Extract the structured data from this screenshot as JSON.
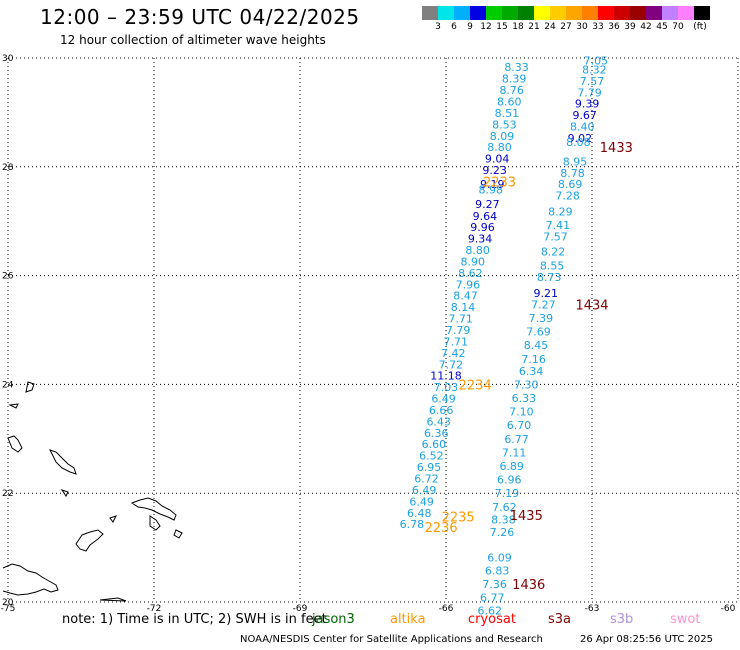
{
  "title": "12:00 – 23:59 UTC 04/22/2025",
  "subtitle": "12 hour collection of altimeter wave heights",
  "colorbar": {
    "colors": [
      "#808080",
      "#00e5e5",
      "#00b0ff",
      "#0000e0",
      "#00cc00",
      "#00aa00",
      "#008000",
      "#ffff00",
      "#ffcc00",
      "#ffa500",
      "#ff7f00",
      "#ff0000",
      "#cc0000",
      "#990000",
      "#800080",
      "#c080ff",
      "#ff80ff",
      "#000000"
    ],
    "labels": [
      "3",
      "6",
      "9",
      "12",
      "15",
      "18",
      "21",
      "24",
      "27",
      "30",
      "33",
      "36",
      "39",
      "42",
      "45",
      "70",
      "(ft)"
    ]
  },
  "axes": {
    "lon_min": -75,
    "lon_max": -60,
    "lat_min": 20,
    "lat_max": 30,
    "lon_ticks": [
      "-75",
      "-72",
      "-69",
      "-66",
      "-63",
      "-60"
    ],
    "lat_ticks": [
      "30",
      "28",
      "26",
      "24",
      "22",
      "20"
    ]
  },
  "colors": {
    "low": "#1ba1e2",
    "mid": "#0000c8",
    "orange": "#ff9900",
    "time_red": "#800000",
    "land": "#000000",
    "grid": "#000000"
  },
  "tracks": [
    {
      "points": [
        {
          "lon": -62.92,
          "lat": 29.95,
          "value": "7.05",
          "c": "low"
        },
        {
          "lon": -62.95,
          "lat": 29.79,
          "value": "8.32",
          "c": "low"
        },
        {
          "lon": -63.0,
          "lat": 29.58,
          "value": "7.57",
          "c": "low"
        },
        {
          "lon": -63.05,
          "lat": 29.37,
          "value": "7.79",
          "c": "low"
        },
        {
          "lon": -63.1,
          "lat": 29.16,
          "value": "9.39",
          "c": "mid"
        },
        {
          "lon": -63.15,
          "lat": 28.95,
          "value": "9.67",
          "c": "mid"
        },
        {
          "lon": -63.2,
          "lat": 28.74,
          "value": "8.40",
          "c": "low"
        },
        {
          "lon": -63.25,
          "lat": 28.53,
          "value": "9.02",
          "c": "mid"
        },
        {
          "lon": -63.28,
          "lat": 28.46,
          "value": "8.08",
          "c": "low"
        },
        {
          "lon": -63.35,
          "lat": 28.1,
          "value": "8.95",
          "c": "low"
        },
        {
          "lon": -63.4,
          "lat": 27.89,
          "value": "8.78",
          "c": "low"
        },
        {
          "lon": -63.45,
          "lat": 27.68,
          "value": "8.69",
          "c": "low"
        },
        {
          "lon": -63.5,
          "lat": 27.47,
          "value": "7.28",
          "c": "low"
        },
        {
          "lon": -63.65,
          "lat": 27.18,
          "value": "8.29",
          "c": "low"
        },
        {
          "lon": -63.7,
          "lat": 26.93,
          "value": "7.41",
          "c": "low"
        },
        {
          "lon": -63.75,
          "lat": 26.72,
          "value": "7.57",
          "c": "low"
        },
        {
          "lon": -63.8,
          "lat": 26.44,
          "value": "8.22",
          "c": "low"
        },
        {
          "lon": -63.82,
          "lat": 26.19,
          "value": "8.55",
          "c": "low"
        },
        {
          "lon": -63.88,
          "lat": 25.97,
          "value": "8.73",
          "c": "low"
        },
        {
          "lon": -63.95,
          "lat": 25.68,
          "value": "9.21",
          "c": "mid"
        },
        {
          "lon": -64.0,
          "lat": 25.47,
          "value": "7.27",
          "c": "low"
        },
        {
          "lon": -64.05,
          "lat": 25.22,
          "value": "7.39",
          "c": "low"
        },
        {
          "lon": -64.1,
          "lat": 24.97,
          "value": "7.69",
          "c": "low"
        },
        {
          "lon": -64.15,
          "lat": 24.72,
          "value": "8.45",
          "c": "low"
        },
        {
          "lon": -64.2,
          "lat": 24.47,
          "value": "7.16",
          "c": "low"
        },
        {
          "lon": -64.25,
          "lat": 24.25,
          "value": "6.34",
          "c": "low"
        },
        {
          "lon": -64.35,
          "lat": 24.0,
          "value": "7.30",
          "c": "low"
        },
        {
          "lon": -64.4,
          "lat": 23.75,
          "value": "6.33",
          "c": "low"
        },
        {
          "lon": -64.45,
          "lat": 23.5,
          "value": "7.10",
          "c": "low"
        },
        {
          "lon": -64.5,
          "lat": 23.25,
          "value": "6.70",
          "c": "low"
        },
        {
          "lon": -64.55,
          "lat": 23.0,
          "value": "6.77",
          "c": "low"
        },
        {
          "lon": -64.6,
          "lat": 22.75,
          "value": "7.11",
          "c": "low"
        },
        {
          "lon": -64.65,
          "lat": 22.5,
          "value": "6.89",
          "c": "low"
        },
        {
          "lon": -64.7,
          "lat": 22.25,
          "value": "6.96",
          "c": "low"
        },
        {
          "lon": -64.75,
          "lat": 22.0,
          "value": "7.19",
          "c": "low"
        },
        {
          "lon": -64.8,
          "lat": 21.75,
          "value": "7.62",
          "c": "low"
        },
        {
          "lon": -64.82,
          "lat": 21.52,
          "value": "8.38",
          "c": "low"
        },
        {
          "lon": -64.85,
          "lat": 21.29,
          "value": "7.26",
          "c": "low"
        },
        {
          "lon": -64.9,
          "lat": 20.82,
          "value": "6.09",
          "c": "low"
        },
        {
          "lon": -64.95,
          "lat": 20.58,
          "value": "6.83",
          "c": "low"
        },
        {
          "lon": -65.0,
          "lat": 20.33,
          "value": "7.36",
          "c": "low"
        },
        {
          "lon": -65.05,
          "lat": 20.08,
          "value": "6.77",
          "c": "low"
        },
        {
          "lon": -65.1,
          "lat": 19.84,
          "value": "6.62",
          "c": "low"
        }
      ]
    },
    {
      "points": [
        {
          "lon": -64.55,
          "lat": 29.83,
          "value": "8.33",
          "c": "low"
        },
        {
          "lon": -64.6,
          "lat": 29.62,
          "value": "8.39",
          "c": "low"
        },
        {
          "lon": -64.65,
          "lat": 29.41,
          "value": "8.76",
          "c": "low"
        },
        {
          "lon": -64.7,
          "lat": 29.2,
          "value": "8.60",
          "c": "low"
        },
        {
          "lon": -64.75,
          "lat": 28.99,
          "value": "8.51",
          "c": "low"
        },
        {
          "lon": -64.8,
          "lat": 28.78,
          "value": "8.53",
          "c": "low"
        },
        {
          "lon": -64.85,
          "lat": 28.57,
          "value": "8.09",
          "c": "low"
        },
        {
          "lon": -64.9,
          "lat": 28.36,
          "value": "8.80",
          "c": "low"
        },
        {
          "lon": -64.95,
          "lat": 28.15,
          "value": "9.04",
          "c": "mid"
        },
        {
          "lon": -65.0,
          "lat": 27.94,
          "value": "9.23",
          "c": "mid"
        },
        {
          "lon": -65.05,
          "lat": 27.68,
          "value": "9.19",
          "c": "mid"
        },
        {
          "lon": -65.08,
          "lat": 27.58,
          "value": "8.98",
          "c": "low"
        },
        {
          "lon": -65.15,
          "lat": 27.32,
          "value": "9.27",
          "c": "mid"
        },
        {
          "lon": -65.2,
          "lat": 27.1,
          "value": "9.64",
          "c": "mid"
        },
        {
          "lon": -65.25,
          "lat": 26.89,
          "value": "9.96",
          "c": "mid"
        },
        {
          "lon": -65.3,
          "lat": 26.68,
          "value": "9.34",
          "c": "mid"
        },
        {
          "lon": -65.35,
          "lat": 26.47,
          "value": "8.80",
          "c": "low"
        },
        {
          "lon": -65.45,
          "lat": 26.26,
          "value": "8.90",
          "c": "low"
        },
        {
          "lon": -65.5,
          "lat": 26.05,
          "value": "8.62",
          "c": "low"
        },
        {
          "lon": -65.55,
          "lat": 25.84,
          "value": "7.96",
          "c": "low"
        },
        {
          "lon": -65.6,
          "lat": 25.63,
          "value": "8.47",
          "c": "low"
        },
        {
          "lon": -65.65,
          "lat": 25.42,
          "value": "8.14",
          "c": "low"
        },
        {
          "lon": -65.7,
          "lat": 25.21,
          "value": "7.71",
          "c": "low"
        },
        {
          "lon": -65.75,
          "lat": 25.0,
          "value": "7.79",
          "c": "low"
        },
        {
          "lon": -65.8,
          "lat": 24.79,
          "value": "7.71",
          "c": "low"
        },
        {
          "lon": -65.85,
          "lat": 24.58,
          "value": "7.42",
          "c": "low"
        },
        {
          "lon": -65.9,
          "lat": 24.37,
          "value": "7.72",
          "c": "low"
        },
        {
          "lon": -66.0,
          "lat": 24.16,
          "value": "11.18",
          "c": "mid"
        },
        {
          "lon": -66.0,
          "lat": 23.95,
          "value": "7.03",
          "c": "low"
        },
        {
          "lon": -66.05,
          "lat": 23.74,
          "value": "6.49",
          "c": "low"
        },
        {
          "lon": -66.1,
          "lat": 23.53,
          "value": "6.66",
          "c": "low"
        },
        {
          "lon": -66.15,
          "lat": 23.32,
          "value": "6.43",
          "c": "low"
        },
        {
          "lon": -66.2,
          "lat": 23.11,
          "value": "6.36",
          "c": "low"
        },
        {
          "lon": -66.25,
          "lat": 22.9,
          "value": "6.60",
          "c": "low"
        },
        {
          "lon": -66.3,
          "lat": 22.69,
          "value": "6.52",
          "c": "low"
        },
        {
          "lon": -66.35,
          "lat": 22.48,
          "value": "6.95",
          "c": "low"
        },
        {
          "lon": -66.4,
          "lat": 22.27,
          "value": "6.72",
          "c": "low"
        },
        {
          "lon": -66.45,
          "lat": 22.06,
          "value": "6.49",
          "c": "low"
        },
        {
          "lon": -66.5,
          "lat": 21.85,
          "value": "6.49",
          "c": "low"
        },
        {
          "lon": -66.55,
          "lat": 21.64,
          "value": "6.48",
          "c": "low"
        },
        {
          "lon": -66.7,
          "lat": 21.43,
          "value": "6.78",
          "c": "low"
        }
      ]
    }
  ],
  "time_labels": [
    {
      "lon": -62.5,
      "lat": 28.36,
      "text": "1433",
      "c": "time_red"
    },
    {
      "lon": -64.9,
      "lat": 27.73,
      "text": "2233",
      "c": "orange"
    },
    {
      "lon": -63.0,
      "lat": 25.47,
      "text": "1434",
      "c": "time_red"
    },
    {
      "lon": -65.4,
      "lat": 24.0,
      "text": "2234",
      "c": "orange"
    },
    {
      "lon": -64.35,
      "lat": 21.6,
      "text": "1435",
      "c": "time_red"
    },
    {
      "lon": -65.75,
      "lat": 21.57,
      "text": "2235",
      "c": "orange"
    },
    {
      "lon": -64.3,
      "lat": 20.33,
      "text": "1436",
      "c": "time_red"
    },
    {
      "lon": -66.1,
      "lat": 21.38,
      "text": "2236",
      "c": "orange"
    }
  ],
  "note": "note:  1) Time is in UTC; 2) SWH is in feet",
  "satellites": [
    {
      "label": "jason3",
      "color": "#006400"
    },
    {
      "label": "altika",
      "color": "#ff9900"
    },
    {
      "label": "cryosat",
      "color": "#ff0000"
    },
    {
      "label": "s3a",
      "color": "#800000"
    },
    {
      "label": "s3b",
      "color": "#b090e0"
    },
    {
      "label": "swot",
      "color": "#ff90d0"
    }
  ],
  "credit": "NOAA/NESDIS Center for Satellite Applications and Research",
  "timestamp": "26 Apr 08:25:56 UTC 2025"
}
